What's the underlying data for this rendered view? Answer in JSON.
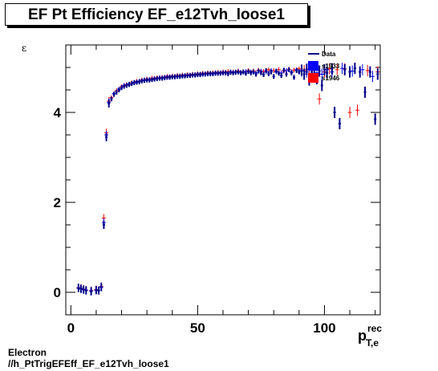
{
  "chart_data": {
    "type": "scatter",
    "title": "EF Pt Efficiency EF_e12Tvh_loose1",
    "ylabel": "ε",
    "xlabel_main": "p",
    "xlabel_sup": "rec",
    "xlabel_sub": "T,e",
    "xlim": [
      -2,
      122
    ],
    "ylim": [
      -0.5,
      5.5
    ],
    "x_ticks": [
      0,
      50,
      100
    ],
    "y_ticks": [
      0,
      2,
      4
    ],
    "legend_position": "top-right",
    "series": [
      {
        "name": "Data",
        "color": "#00008b",
        "points": [
          [
            3,
            0.1
          ],
          [
            4,
            0.08
          ],
          [
            5,
            0.06
          ],
          [
            6,
            0.04
          ],
          [
            8,
            0.02
          ],
          [
            10,
            0.05
          ],
          [
            11,
            0.04
          ],
          [
            12,
            0.12
          ],
          [
            13,
            1.5
          ],
          [
            14,
            3.45
          ],
          [
            15,
            4.2
          ],
          [
            16,
            4.3
          ],
          [
            17,
            4.4
          ],
          [
            18,
            4.45
          ],
          [
            19,
            4.5
          ],
          [
            20,
            4.55
          ],
          [
            21,
            4.58
          ],
          [
            22,
            4.6
          ],
          [
            23,
            4.62
          ],
          [
            24,
            4.64
          ],
          [
            25,
            4.66
          ],
          [
            26,
            4.67
          ],
          [
            27,
            4.68
          ],
          [
            28,
            4.7
          ],
          [
            29,
            4.71
          ],
          [
            30,
            4.72
          ],
          [
            31,
            4.72
          ],
          [
            32,
            4.73
          ],
          [
            33,
            4.74
          ],
          [
            34,
            4.75
          ],
          [
            35,
            4.76
          ],
          [
            36,
            4.76
          ],
          [
            37,
            4.77
          ],
          [
            38,
            4.78
          ],
          [
            39,
            4.78
          ],
          [
            40,
            4.79
          ],
          [
            41,
            4.79
          ],
          [
            42,
            4.8
          ],
          [
            43,
            4.8
          ],
          [
            44,
            4.81
          ],
          [
            45,
            4.81
          ],
          [
            46,
            4.82
          ],
          [
            47,
            4.82
          ],
          [
            48,
            4.83
          ],
          [
            49,
            4.83
          ],
          [
            50,
            4.84
          ],
          [
            51,
            4.84
          ],
          [
            52,
            4.85
          ],
          [
            53,
            4.85
          ],
          [
            54,
            4.86
          ],
          [
            55,
            4.86
          ],
          [
            56,
            4.86
          ],
          [
            57,
            4.87
          ],
          [
            58,
            4.87
          ],
          [
            59,
            4.87
          ],
          [
            60,
            4.88
          ],
          [
            61,
            4.88
          ],
          [
            62,
            4.86
          ],
          [
            63,
            4.89
          ],
          [
            64,
            4.88
          ],
          [
            65,
            4.89
          ],
          [
            66,
            4.9
          ],
          [
            67,
            4.88
          ],
          [
            68,
            4.9
          ],
          [
            69,
            4.87
          ],
          [
            70,
            4.91
          ],
          [
            71,
            4.88
          ],
          [
            72,
            4.9
          ],
          [
            73,
            4.85
          ],
          [
            74,
            4.92
          ],
          [
            75,
            4.88
          ],
          [
            76,
            4.84
          ],
          [
            77,
            4.93
          ],
          [
            78,
            4.86
          ],
          [
            79,
            4.9
          ],
          [
            80,
            4.8
          ],
          [
            81,
            4.92
          ],
          [
            82,
            4.87
          ],
          [
            83,
            4.82
          ],
          [
            84,
            4.94
          ],
          [
            85,
            4.85
          ],
          [
            86,
            4.95
          ],
          [
            87,
            4.88
          ],
          [
            88,
            4.78
          ],
          [
            89,
            4.93
          ],
          [
            90,
            4.9
          ],
          [
            91,
            4.94
          ],
          [
            92,
            4.85
          ],
          [
            93,
            4.96
          ],
          [
            94,
            4.72
          ],
          [
            95,
            4.9
          ],
          [
            96,
            4.95
          ],
          [
            97,
            4.75
          ],
          [
            98,
            4.92
          ],
          [
            99,
            4.6
          ],
          [
            100,
            4.95
          ],
          [
            101,
            4.88
          ],
          [
            103,
            4.97
          ],
          [
            104,
            4.0
          ],
          [
            106,
            3.75
          ],
          [
            108,
            4.95
          ],
          [
            110,
            4.9
          ],
          [
            112,
            4.98
          ],
          [
            114,
            4.9
          ],
          [
            116,
            4.45
          ],
          [
            118,
            4.9
          ],
          [
            120,
            3.85
          ],
          [
            121,
            4.85
          ]
        ]
      },
      {
        "name": "s1933",
        "color": "#0000ff",
        "points": [
          [
            3,
            0.09
          ],
          [
            4,
            0.07
          ],
          [
            5,
            0.06
          ],
          [
            6,
            0.05
          ],
          [
            8,
            0.03
          ],
          [
            10,
            0.04
          ],
          [
            12,
            0.11
          ],
          [
            13,
            1.55
          ],
          [
            14,
            3.5
          ],
          [
            15,
            4.22
          ],
          [
            17,
            4.42
          ],
          [
            19,
            4.52
          ],
          [
            21,
            4.6
          ],
          [
            23,
            4.63
          ],
          [
            25,
            4.67
          ],
          [
            27,
            4.69
          ],
          [
            29,
            4.72
          ],
          [
            31,
            4.73
          ],
          [
            33,
            4.75
          ],
          [
            35,
            4.77
          ],
          [
            37,
            4.78
          ],
          [
            39,
            4.79
          ],
          [
            41,
            4.8
          ],
          [
            43,
            4.81
          ],
          [
            45,
            4.82
          ],
          [
            47,
            4.83
          ],
          [
            49,
            4.84
          ],
          [
            51,
            4.85
          ],
          [
            53,
            4.86
          ],
          [
            55,
            4.87
          ],
          [
            57,
            4.88
          ],
          [
            59,
            4.88
          ],
          [
            61,
            4.89
          ],
          [
            63,
            4.9
          ],
          [
            65,
            4.9
          ],
          [
            67,
            4.89
          ],
          [
            69,
            4.91
          ],
          [
            71,
            4.9
          ],
          [
            73,
            4.88
          ],
          [
            75,
            4.92
          ],
          [
            77,
            4.9
          ],
          [
            79,
            4.93
          ],
          [
            81,
            4.9
          ],
          [
            83,
            4.88
          ],
          [
            85,
            4.93
          ],
          [
            87,
            4.9
          ],
          [
            89,
            4.95
          ],
          [
            91,
            4.92
          ],
          [
            93,
            4.9
          ],
          [
            95,
            4.94
          ],
          [
            97,
            4.88
          ],
          [
            99,
            4.85
          ],
          [
            101,
            4.95
          ],
          [
            103,
            4.9
          ],
          [
            107,
            4.98
          ],
          [
            111,
            4.92
          ],
          [
            115,
            4.95
          ],
          [
            119,
            4.8
          ]
        ]
      },
      {
        "name": "s1946",
        "color": "#ff0000",
        "points": [
          [
            3,
            0.1
          ],
          [
            4,
            0.09
          ],
          [
            5,
            0.07
          ],
          [
            6,
            0.05
          ],
          [
            8,
            0.04
          ],
          [
            10,
            0.06
          ],
          [
            12,
            0.13
          ],
          [
            13,
            1.65
          ],
          [
            14,
            3.55
          ],
          [
            15,
            4.25
          ],
          [
            16,
            4.33
          ],
          [
            18,
            4.48
          ],
          [
            20,
            4.57
          ],
          [
            22,
            4.62
          ],
          [
            24,
            4.66
          ],
          [
            26,
            4.69
          ],
          [
            28,
            4.72
          ],
          [
            30,
            4.74
          ],
          [
            32,
            4.76
          ],
          [
            34,
            4.77
          ],
          [
            36,
            4.78
          ],
          [
            38,
            4.8
          ],
          [
            40,
            4.81
          ],
          [
            42,
            4.82
          ],
          [
            44,
            4.83
          ],
          [
            46,
            4.84
          ],
          [
            48,
            4.85
          ],
          [
            50,
            4.86
          ],
          [
            52,
            4.87
          ],
          [
            54,
            4.88
          ],
          [
            56,
            4.88
          ],
          [
            58,
            4.89
          ],
          [
            60,
            4.9
          ],
          [
            62,
            4.91
          ],
          [
            64,
            4.9
          ],
          [
            66,
            4.92
          ],
          [
            68,
            4.9
          ],
          [
            70,
            4.93
          ],
          [
            72,
            4.92
          ],
          [
            74,
            4.94
          ],
          [
            76,
            4.91
          ],
          [
            78,
            4.95
          ],
          [
            80,
            4.93
          ],
          [
            82,
            4.95
          ],
          [
            84,
            4.92
          ],
          [
            86,
            4.96
          ],
          [
            88,
            4.94
          ],
          [
            90,
            4.97
          ],
          [
            92,
            4.93
          ],
          [
            94,
            4.95
          ],
          [
            96,
            4.98
          ],
          [
            98,
            4.3
          ],
          [
            100,
            4.9
          ],
          [
            102,
            4.97
          ],
          [
            105,
            4.95
          ],
          [
            108,
            4.97
          ],
          [
            110,
            4.0
          ],
          [
            113,
            4.05
          ],
          [
            117,
            4.93
          ],
          [
            121,
            4.9
          ]
        ]
      }
    ]
  },
  "footer": {
    "line1": "Electron",
    "line2": "//h_PtTrigEFEff_EF_e12Tvh_loose1"
  }
}
